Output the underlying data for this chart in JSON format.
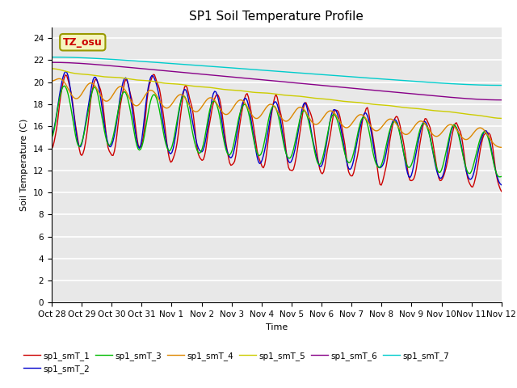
{
  "title": "SP1 Soil Temperature Profile",
  "xlabel": "Time",
  "ylabel": "Soil Temperature (C)",
  "ylim": [
    0,
    25
  ],
  "yticks": [
    0,
    2,
    4,
    6,
    8,
    10,
    12,
    14,
    16,
    18,
    20,
    22,
    24
  ],
  "xtick_labels": [
    "Oct 28",
    "Oct 29",
    "Oct 30",
    "Oct 31",
    "Nov 1",
    "Nov 2",
    "Nov 3",
    "Nov 4",
    "Nov 5",
    "Nov 6",
    "Nov 7",
    "Nov 8",
    "Nov 9",
    "Nov 10",
    "Nov 11",
    "Nov 12"
  ],
  "bg_color": "#e8e8e8",
  "fig_color": "#ffffff",
  "annotation_text": "TZ_osu",
  "annotation_color": "#cc0000",
  "annotation_bg": "#f5f5c0",
  "annotation_edge": "#999900",
  "series_colors": [
    "#cc0000",
    "#0000cc",
    "#00bb00",
    "#dd8800",
    "#cccc00",
    "#880088",
    "#00cccc"
  ],
  "series_labels": [
    "sp1_smT_1",
    "sp1_smT_2",
    "sp1_smT_3",
    "sp1_smT_4",
    "sp1_smT_5",
    "sp1_smT_6",
    "sp1_smT_7"
  ],
  "title_fontsize": 11,
  "label_fontsize": 8,
  "tick_fontsize": 7.5
}
